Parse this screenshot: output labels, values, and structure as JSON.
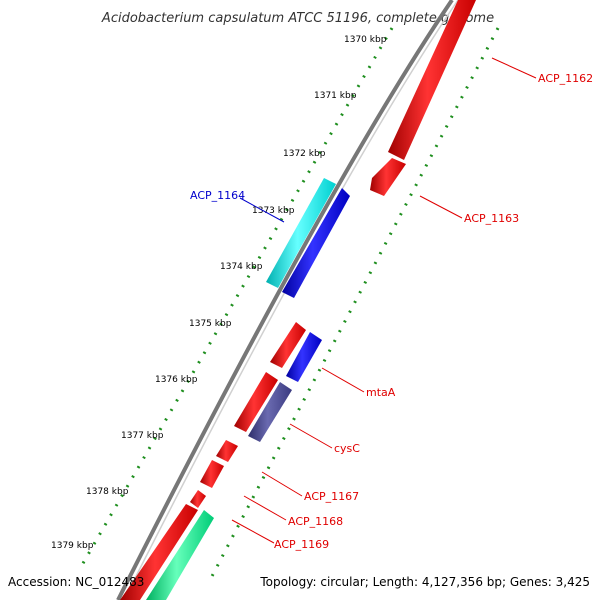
{
  "title": "Acidobacterium capsulatum ATCC 51196, complete genome",
  "ticks": [
    {
      "label": "1370 kbp"
    },
    {
      "label": "1371 kbp"
    },
    {
      "label": "1372 kbp"
    },
    {
      "label": "1373 kbp"
    },
    {
      "label": "1374 kbp"
    },
    {
      "label": "1375 kbp"
    },
    {
      "label": "1376 kbp"
    },
    {
      "label": "1377 kbp"
    },
    {
      "label": "1378 kbp"
    },
    {
      "label": "1379 kbp"
    }
  ],
  "genes": [
    {
      "label": "ACP_1162",
      "color": "#ff0000"
    },
    {
      "label": "ACP_1163",
      "color": "#ff0000"
    },
    {
      "label": "ACP_1164",
      "color": "#0000cc"
    },
    {
      "label": "mtaA",
      "color": "#ff0000"
    },
    {
      "label": "cysC",
      "color": "#ff0000"
    },
    {
      "label": "ACP_1167",
      "color": "#ff0000"
    },
    {
      "label": "ACP_1168",
      "color": "#ff0000"
    },
    {
      "label": "ACP_1169",
      "color": "#ff0000"
    }
  ],
  "feature_colors": {
    "red": "#ff1a1a",
    "blue": "#1a1aff",
    "cyan": "#22ffff",
    "slate": "#4b4b8f",
    "green": "#33ff99",
    "backbone": "#808080"
  },
  "footer": {
    "accession": "Accession: NC_012483",
    "summary": "Topology: circular; Length: 4,127,356 bp; Genes: 3,425"
  }
}
